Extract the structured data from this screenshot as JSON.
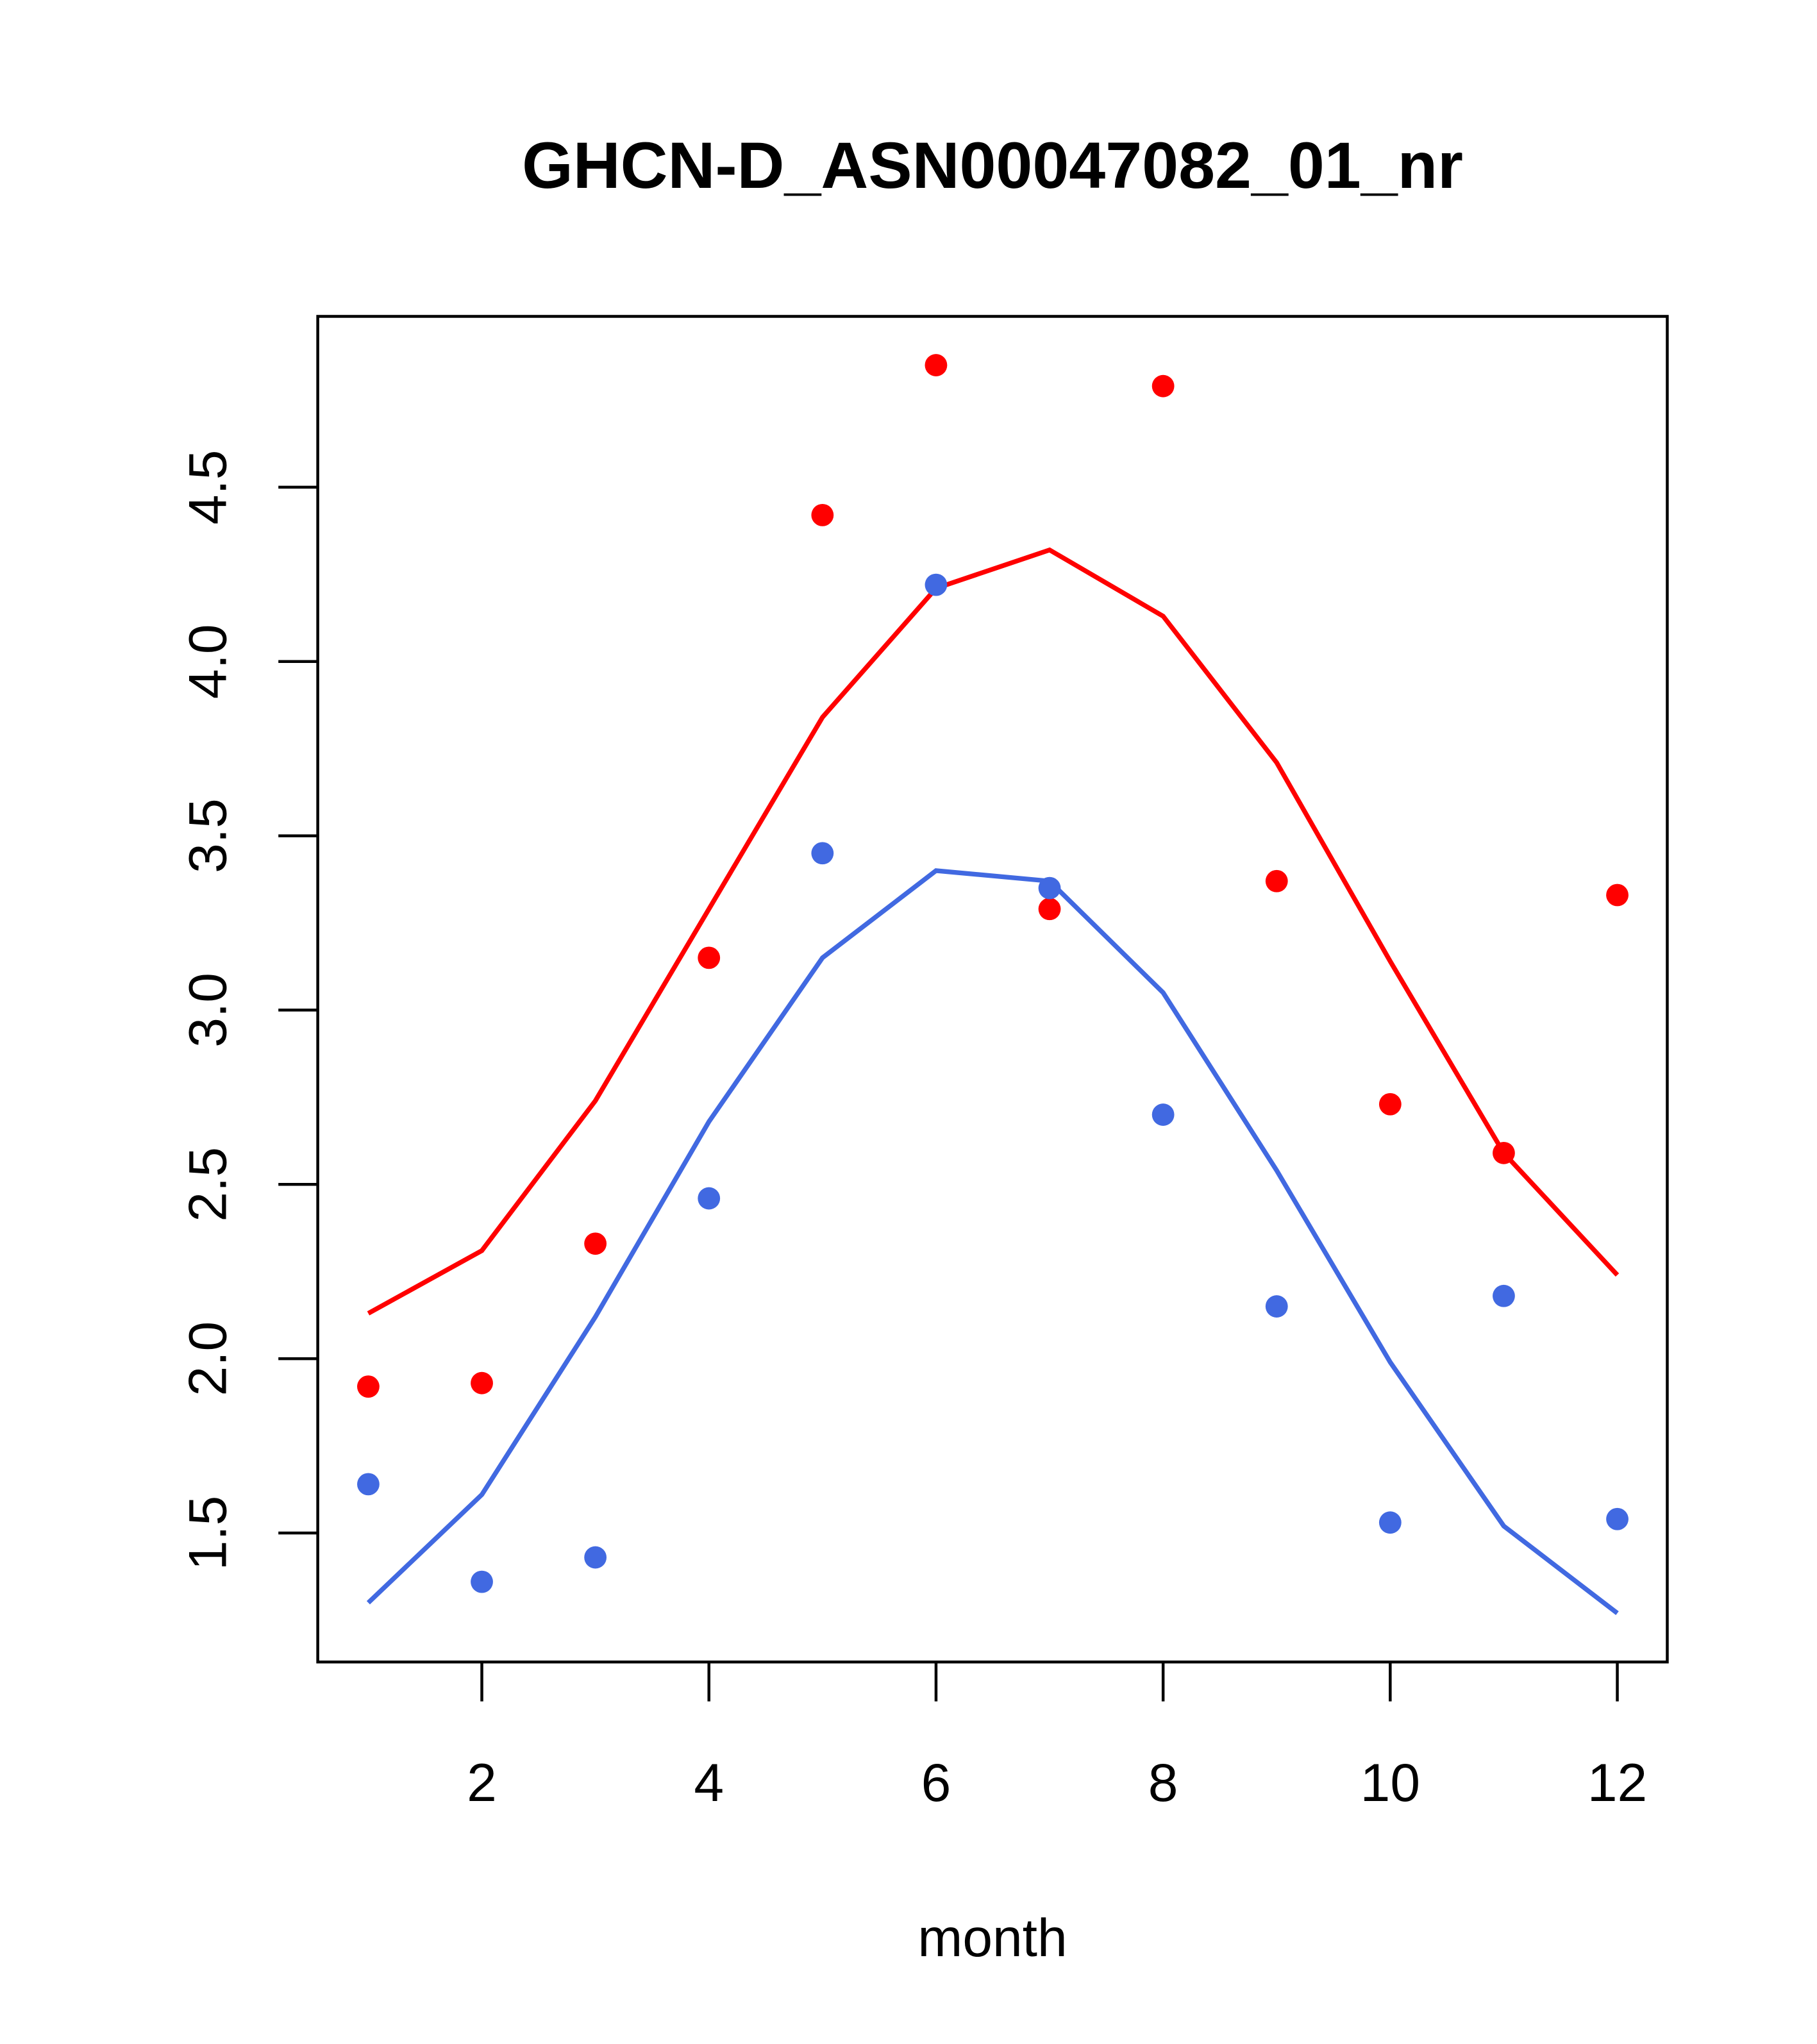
{
  "chart_data": {
    "type": "line",
    "title": "GHCN-D_ASN00047082_01_nr",
    "xlabel": "month",
    "ylabel": "",
    "xlim": [
      0.555,
      12.44
    ],
    "ylim": [
      1.13,
      4.99
    ],
    "xticks": [
      2,
      4,
      6,
      8,
      10,
      12
    ],
    "xtick_labels": [
      "2",
      "4",
      "6",
      "8",
      "10",
      "12"
    ],
    "yticks": [
      1.5,
      2.0,
      2.5,
      3.0,
      3.5,
      4.0,
      4.5
    ],
    "ytick_labels": [
      "1.5",
      "2.0",
      "2.5",
      "3.0",
      "3.5",
      "4.0",
      "4.5"
    ],
    "grid": false,
    "x": [
      1,
      2,
      3,
      4,
      5,
      6,
      7,
      8,
      9,
      10,
      11,
      12
    ],
    "series": [
      {
        "name": "red-points",
        "kind": "scatter",
        "color": "#ff0000",
        "values": [
          1.92,
          1.93,
          2.33,
          3.15,
          4.42,
          4.85,
          3.29,
          4.79,
          3.37,
          2.73,
          2.59,
          3.33
        ]
      },
      {
        "name": "red-line",
        "kind": "line",
        "color": "#ff0000",
        "values": [
          2.13,
          2.31,
          2.74,
          3.29,
          3.84,
          4.21,
          4.32,
          4.13,
          3.71,
          3.14,
          2.59,
          2.24
        ]
      },
      {
        "name": "blue-points",
        "kind": "scatter",
        "color": "#4169e1",
        "values": [
          1.64,
          1.36,
          1.43,
          2.46,
          3.45,
          4.22,
          3.35,
          2.7,
          2.15,
          1.53,
          2.18,
          1.54
        ]
      },
      {
        "name": "blue-line",
        "kind": "line",
        "color": "#4169e1",
        "values": [
          1.3,
          1.61,
          2.12,
          2.68,
          3.15,
          3.4,
          3.37,
          3.05,
          2.54,
          1.99,
          1.52,
          1.27
        ]
      }
    ]
  }
}
